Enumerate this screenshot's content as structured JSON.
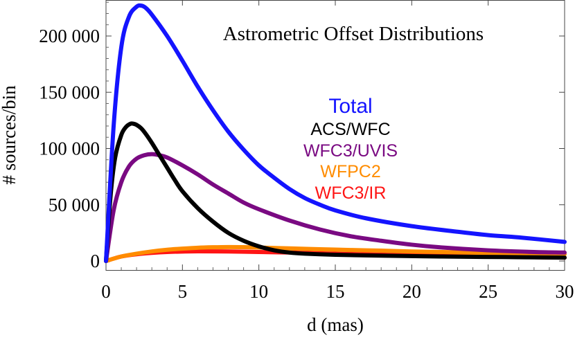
{
  "chart_data": {
    "type": "line",
    "title": "Astrometric Offset Distributions",
    "xlabel": "d (mas)",
    "ylabel": "# sources/bin",
    "xlim": [
      0,
      30
    ],
    "ylim": [
      -8000,
      232000
    ],
    "xticks": [
      0,
      5,
      10,
      15,
      20,
      25,
      30
    ],
    "xtick_labels": [
      "0",
      "5",
      "10",
      "15",
      "20",
      "25",
      "30"
    ],
    "yticks": [
      0,
      50000,
      100000,
      150000,
      200000
    ],
    "ytick_labels": [
      "0",
      "50 000",
      "100 000",
      "150 000",
      "200 000"
    ],
    "legend_position": "center-right",
    "series": [
      {
        "name": "Total",
        "color": "#1414ff",
        "x": [
          0,
          0.5,
          1,
          1.5,
          2,
          2.3,
          2.6,
          3,
          4,
          5,
          6,
          7,
          8,
          9,
          10,
          11,
          12,
          13,
          14,
          15,
          17,
          20,
          23,
          25,
          27,
          30
        ],
        "y": [
          0,
          120000,
          190000,
          217000,
          226000,
          227000,
          225000,
          219000,
          200000,
          178000,
          155000,
          134000,
          115000,
          99000,
          85000,
          74000,
          64000,
          56000,
          50000,
          45000,
          38000,
          31000,
          26000,
          23000,
          21000,
          17000
        ]
      },
      {
        "name": "ACS/WFC",
        "color": "#000000",
        "x": [
          0,
          0.3,
          0.6,
          1,
          1.3,
          1.6,
          1.8,
          2,
          2.3,
          2.6,
          3,
          3.5,
          4,
          4.5,
          5,
          6,
          7,
          8,
          9,
          10,
          11,
          12,
          13,
          15,
          18,
          22,
          26,
          30
        ],
        "y": [
          0,
          58000,
          92000,
          112000,
          119000,
          122000,
          122000,
          121000,
          118000,
          113000,
          105000,
          94000,
          83000,
          72000,
          62000,
          47000,
          35000,
          25000,
          18000,
          13000,
          9500,
          7500,
          6500,
          5500,
          4800,
          4000,
          3500,
          3000
        ]
      },
      {
        "name": "WFC3/UVIS",
        "color": "#7a0a82",
        "x": [
          0,
          0.5,
          1,
          1.5,
          2,
          2.5,
          3,
          3.5,
          4,
          5,
          6,
          7,
          8,
          9,
          10,
          12,
          14,
          16,
          18,
          20,
          22,
          25,
          28,
          30
        ],
        "y": [
          0,
          45000,
          70000,
          84000,
          91000,
          94000,
          95000,
          94000,
          92000,
          85000,
          77000,
          68000,
          60000,
          52000,
          46000,
          36000,
          28000,
          22000,
          18000,
          14500,
          12000,
          9500,
          8000,
          7500
        ]
      },
      {
        "name": "WFPC2",
        "color": "#ff8c00",
        "x": [
          0,
          1,
          2,
          3,
          4,
          5,
          6,
          7,
          8,
          9,
          10,
          12,
          14,
          16,
          18,
          20,
          22,
          25,
          28,
          30
        ],
        "y": [
          0,
          4000,
          6500,
          8500,
          10000,
          11000,
          11800,
          12200,
          12400,
          12300,
          12000,
          11200,
          10500,
          9800,
          9200,
          8500,
          8000,
          7200,
          6500,
          6000
        ]
      },
      {
        "name": "WFC3/IR",
        "color": "#ff1414",
        "x": [
          0,
          1,
          2,
          3,
          4,
          5,
          6,
          8,
          10,
          12,
          15,
          18,
          20,
          25,
          30
        ],
        "y": [
          0,
          4000,
          6000,
          7200,
          8000,
          8400,
          8600,
          8500,
          8000,
          7500,
          6500,
          5600,
          5000,
          4000,
          3000
        ]
      }
    ]
  }
}
